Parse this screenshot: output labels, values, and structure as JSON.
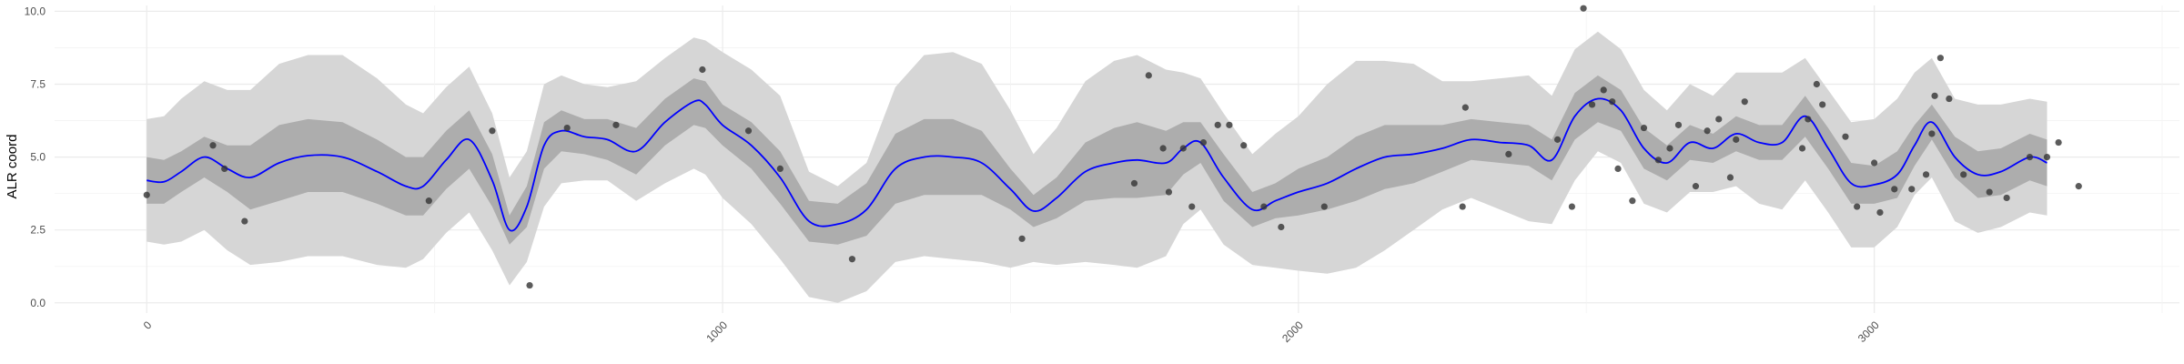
{
  "chart_data": {
    "type": "line",
    "title": "",
    "xlabel": "",
    "ylabel": "ALR coord",
    "xlim": [
      -160,
      3530
    ],
    "ylim": [
      -0.35,
      10.2
    ],
    "xticks": [
      0,
      1000,
      2000,
      3000
    ],
    "xtick_labels": [
      "0",
      "1000",
      "2000",
      "3000"
    ],
    "yticks": [
      0,
      2.5,
      5,
      7.5,
      10
    ],
    "ytick_labels": [
      "0.0",
      "2.5",
      "5.0",
      "7.5",
      "10.0"
    ],
    "grid": true,
    "colors": {
      "line": "#0000ff",
      "inner_band": "#adadad",
      "outer_band": "#d6d6d6",
      "points": "#333333",
      "grid": "#ebebeb"
    },
    "series": [
      {
        "kind": "line",
        "x": [
          0,
          30,
          60,
          100,
          140,
          180,
          230,
          280,
          340,
          400,
          450,
          480,
          520,
          560,
          600,
          630,
          660,
          690,
          720,
          760,
          800,
          850,
          900,
          950,
          970,
          1000,
          1050,
          1100,
          1150,
          1200,
          1250,
          1300,
          1350,
          1400,
          1450,
          1500,
          1540,
          1580,
          1630,
          1680,
          1720,
          1770,
          1800,
          1830,
          1870,
          1920,
          1960,
          2000,
          2050,
          2100,
          2150,
          2200,
          2250,
          2300,
          2350,
          2400,
          2440,
          2480,
          2520,
          2560,
          2600,
          2640,
          2680,
          2720,
          2760,
          2800,
          2840,
          2880,
          2920,
          2960,
          3000,
          3040,
          3070,
          3100,
          3140,
          3180,
          3220,
          3270,
          3300
        ],
        "y": [
          4.2,
          4.15,
          4.5,
          5.0,
          4.6,
          4.3,
          4.8,
          5.05,
          5.0,
          4.5,
          4.0,
          4.0,
          4.9,
          5.6,
          4.2,
          2.5,
          3.3,
          5.4,
          5.9,
          5.7,
          5.6,
          5.2,
          6.2,
          6.9,
          6.8,
          6.1,
          5.4,
          4.3,
          2.8,
          2.7,
          3.2,
          4.6,
          5.0,
          5.0,
          4.8,
          3.9,
          3.15,
          3.6,
          4.5,
          4.8,
          4.9,
          4.8,
          5.3,
          5.5,
          4.3,
          3.2,
          3.5,
          3.8,
          4.1,
          4.6,
          5.0,
          5.1,
          5.3,
          5.6,
          5.5,
          5.4,
          4.9,
          6.4,
          7.0,
          6.6,
          5.3,
          4.8,
          5.5,
          5.3,
          5.8,
          5.5,
          5.5,
          6.4,
          5.3,
          4.1,
          4.05,
          4.4,
          5.4,
          6.2,
          5.0,
          4.4,
          4.5,
          5.0,
          4.8
        ]
      },
      {
        "kind": "inner_band",
        "x": [
          0,
          30,
          60,
          100,
          140,
          180,
          230,
          280,
          340,
          400,
          450,
          480,
          520,
          560,
          600,
          630,
          660,
          690,
          720,
          760,
          800,
          850,
          900,
          950,
          970,
          1000,
          1050,
          1100,
          1150,
          1200,
          1250,
          1300,
          1350,
          1400,
          1450,
          1500,
          1540,
          1580,
          1630,
          1680,
          1720,
          1770,
          1800,
          1830,
          1870,
          1920,
          1960,
          2000,
          2050,
          2100,
          2150,
          2200,
          2250,
          2300,
          2350,
          2400,
          2440,
          2480,
          2520,
          2560,
          2600,
          2640,
          2680,
          2720,
          2760,
          2800,
          2840,
          2880,
          2920,
          2960,
          3000,
          3040,
          3070,
          3100,
          3140,
          3180,
          3220,
          3270,
          3300
        ],
        "y_low": [
          3.4,
          3.4,
          3.8,
          4.3,
          3.8,
          3.2,
          3.5,
          3.8,
          3.8,
          3.4,
          3.0,
          3.0,
          3.9,
          4.6,
          3.3,
          2.0,
          2.6,
          4.6,
          5.2,
          5.1,
          4.9,
          4.4,
          5.4,
          6.1,
          6.0,
          5.4,
          4.6,
          3.4,
          2.1,
          2.0,
          2.3,
          3.4,
          3.7,
          3.7,
          3.7,
          3.2,
          2.6,
          2.9,
          3.5,
          3.6,
          3.6,
          3.7,
          4.4,
          4.8,
          3.5,
          2.6,
          2.9,
          3.0,
          3.2,
          3.5,
          3.9,
          4.1,
          4.5,
          4.9,
          4.8,
          4.7,
          4.2,
          5.6,
          6.2,
          5.9,
          4.6,
          4.2,
          4.9,
          4.8,
          5.2,
          4.9,
          4.9,
          5.7,
          4.6,
          3.4,
          3.4,
          3.6,
          4.7,
          5.6,
          4.3,
          3.6,
          3.7,
          4.2,
          4.0
        ],
        "y_high": [
          5.0,
          4.9,
          5.2,
          5.7,
          5.4,
          5.4,
          6.1,
          6.3,
          6.2,
          5.6,
          5.0,
          5.0,
          5.9,
          6.6,
          5.1,
          3.0,
          4.0,
          6.2,
          6.6,
          6.3,
          6.3,
          6.0,
          7.0,
          7.7,
          7.6,
          6.8,
          6.2,
          5.2,
          3.5,
          3.4,
          4.1,
          5.8,
          6.3,
          6.3,
          5.9,
          4.6,
          3.7,
          4.3,
          5.5,
          6.0,
          6.2,
          5.9,
          6.2,
          6.2,
          5.1,
          3.8,
          4.1,
          4.6,
          5.0,
          5.7,
          6.1,
          6.1,
          6.1,
          6.3,
          6.2,
          6.1,
          5.6,
          7.2,
          7.8,
          7.3,
          6.0,
          5.4,
          6.1,
          5.8,
          6.4,
          6.1,
          6.1,
          7.1,
          6.0,
          4.8,
          4.7,
          5.2,
          6.1,
          6.8,
          5.7,
          5.2,
          5.3,
          5.8,
          5.6
        ]
      },
      {
        "kind": "outer_band",
        "x": [
          0,
          30,
          60,
          100,
          140,
          180,
          230,
          280,
          340,
          400,
          450,
          480,
          520,
          560,
          600,
          630,
          660,
          690,
          720,
          760,
          800,
          850,
          900,
          950,
          970,
          1000,
          1050,
          1100,
          1150,
          1200,
          1250,
          1300,
          1350,
          1400,
          1450,
          1500,
          1540,
          1580,
          1630,
          1680,
          1720,
          1770,
          1800,
          1830,
          1870,
          1920,
          1960,
          2000,
          2050,
          2100,
          2150,
          2200,
          2250,
          2300,
          2350,
          2400,
          2440,
          2480,
          2520,
          2560,
          2600,
          2640,
          2680,
          2720,
          2760,
          2800,
          2840,
          2880,
          2920,
          2960,
          3000,
          3040,
          3070,
          3100,
          3140,
          3180,
          3220,
          3270,
          3300
        ],
        "y_low": [
          2.1,
          2.0,
          2.1,
          2.5,
          1.8,
          1.3,
          1.4,
          1.6,
          1.6,
          1.3,
          1.2,
          1.5,
          2.4,
          3.1,
          1.8,
          0.6,
          1.4,
          3.3,
          4.1,
          4.2,
          4.2,
          3.5,
          4.1,
          4.6,
          4.4,
          3.6,
          2.7,
          1.5,
          0.2,
          0.0,
          0.4,
          1.4,
          1.6,
          1.5,
          1.4,
          1.2,
          1.4,
          1.3,
          1.4,
          1.3,
          1.2,
          1.6,
          2.7,
          3.2,
          2.0,
          1.3,
          1.2,
          1.1,
          1.0,
          1.2,
          1.8,
          2.5,
          3.2,
          3.6,
          3.2,
          2.8,
          2.7,
          4.2,
          5.2,
          4.8,
          3.4,
          3.1,
          3.8,
          3.8,
          4.0,
          3.4,
          3.2,
          4.2,
          3.1,
          1.9,
          1.9,
          2.6,
          3.7,
          4.3,
          2.8,
          2.4,
          2.6,
          3.1,
          3.0
        ],
        "y_high": [
          6.3,
          6.4,
          7.0,
          7.6,
          7.3,
          7.3,
          8.2,
          8.5,
          8.5,
          7.7,
          6.8,
          6.5,
          7.4,
          8.1,
          6.5,
          4.3,
          5.2,
          7.5,
          7.8,
          7.5,
          7.4,
          7.6,
          8.4,
          9.1,
          9.0,
          8.6,
          8.0,
          7.1,
          4.5,
          4.0,
          4.8,
          7.4,
          8.5,
          8.6,
          8.2,
          6.6,
          5.1,
          6.0,
          7.6,
          8.3,
          8.5,
          8.0,
          7.9,
          7.7,
          6.5,
          5.1,
          5.8,
          6.4,
          7.5,
          8.3,
          8.3,
          8.2,
          7.6,
          7.6,
          7.7,
          7.8,
          7.1,
          8.7,
          9.3,
          8.7,
          7.3,
          6.6,
          7.5,
          7.1,
          7.9,
          7.9,
          7.9,
          8.4,
          7.3,
          6.2,
          6.3,
          7.0,
          7.9,
          8.4,
          7.0,
          6.8,
          6.8,
          7.0,
          6.9
        ]
      },
      {
        "kind": "points",
        "x": [
          0,
          115,
          135,
          170,
          490,
          600,
          665,
          730,
          815,
          965,
          1045,
          1100,
          1225,
          1520,
          1715,
          1740,
          1765,
          1775,
          1800,
          1815,
          1835,
          1860,
          1880,
          1905,
          1940,
          1970,
          2045,
          2285,
          2290,
          2365,
          2450,
          2475,
          2495,
          2510,
          2530,
          2545,
          2555,
          2580,
          2600,
          2625,
          2645,
          2660,
          2690,
          2710,
          2730,
          2750,
          2760,
          2775,
          2875,
          2885,
          2900,
          2910,
          2950,
          2970,
          3000,
          3010,
          3035,
          3065,
          3090,
          3100,
          3105,
          3115,
          3130,
          3155,
          3200,
          3230,
          3270,
          3300,
          3320,
          3355
        ],
        "y": [
          3.7,
          5.4,
          4.6,
          2.8,
          3.5,
          5.9,
          0.6,
          6.0,
          6.1,
          8.0,
          5.9,
          4.6,
          1.5,
          2.2,
          4.1,
          7.8,
          5.3,
          3.8,
          5.3,
          3.3,
          5.5,
          6.1,
          6.1,
          5.4,
          3.3,
          2.6,
          3.3,
          3.3,
          6.7,
          5.1,
          5.6,
          3.3,
          10.1,
          6.8,
          7.3,
          6.9,
          4.6,
          3.5,
          6.0,
          4.9,
          5.3,
          6.1,
          4.0,
          5.9,
          6.3,
          4.3,
          5.6,
          6.9,
          5.3,
          6.3,
          7.5,
          6.8,
          5.7,
          3.3,
          4.8,
          3.1,
          3.9,
          3.9,
          4.4,
          5.8,
          7.1,
          8.4,
          7.0,
          4.4,
          3.8,
          3.6,
          5.0,
          5.0,
          5.5,
          4.0
        ]
      }
    ]
  }
}
